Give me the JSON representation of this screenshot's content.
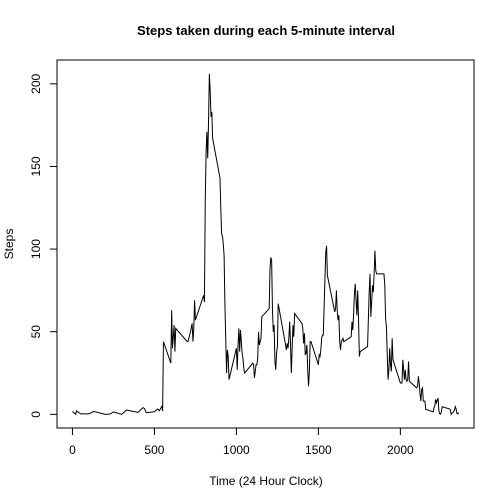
{
  "chart_data": {
    "type": "line",
    "title": "Steps taken during each 5-minute interval",
    "x_label": "Time (24 Hour Clock)",
    "y_label": "Steps",
    "color": "#000000",
    "x": [
      0,
      20,
      25,
      50,
      100,
      130,
      200,
      230,
      250,
      300,
      330,
      400,
      430,
      440,
      450,
      500,
      520,
      530,
      545,
      550,
      555,
      600,
      605,
      610,
      620,
      625,
      630,
      700,
      705,
      720,
      730,
      735,
      740,
      745,
      750,
      800,
      805,
      810,
      815,
      820,
      825,
      830,
      835,
      840,
      845,
      850,
      855,
      900,
      905,
      910,
      915,
      920,
      925,
      930,
      935,
      940,
      945,
      950,
      955,
      1000,
      1005,
      1010,
      1015,
      1020,
      1025,
      1030,
      1035,
      1040,
      1045,
      1050,
      1100,
      1105,
      1110,
      1115,
      1120,
      1125,
      1130,
      1135,
      1140,
      1145,
      1150,
      1155,
      1200,
      1205,
      1210,
      1215,
      1220,
      1225,
      1230,
      1235,
      1240,
      1245,
      1250,
      1255,
      1300,
      1305,
      1310,
      1315,
      1320,
      1325,
      1330,
      1335,
      1340,
      1345,
      1350,
      1355,
      1400,
      1405,
      1410,
      1415,
      1420,
      1425,
      1430,
      1435,
      1440,
      1445,
      1450,
      1455,
      1500,
      1505,
      1510,
      1515,
      1520,
      1525,
      1530,
      1535,
      1540,
      1545,
      1550,
      1555,
      1600,
      1605,
      1610,
      1615,
      1620,
      1625,
      1630,
      1635,
      1640,
      1645,
      1650,
      1655,
      1700,
      1705,
      1710,
      1715,
      1720,
      1725,
      1730,
      1735,
      1740,
      1745,
      1750,
      1755,
      1800,
      1805,
      1810,
      1815,
      1820,
      1825,
      1830,
      1835,
      1840,
      1845,
      1850,
      1855,
      1900,
      1905,
      1910,
      1915,
      1920,
      1925,
      1930,
      1935,
      1940,
      1945,
      1950,
      1955,
      2000,
      2005,
      2010,
      2015,
      2020,
      2025,
      2030,
      2035,
      2040,
      2045,
      2050,
      2055,
      2100,
      2105,
      2110,
      2115,
      2120,
      2125,
      2130,
      2135,
      2140,
      2145,
      2150,
      2155,
      2200,
      2205,
      2210,
      2215,
      2220,
      2225,
      2230,
      2235,
      2240,
      2245,
      2250,
      2255,
      2300,
      2305,
      2310,
      2315,
      2320,
      2325,
      2330,
      2335,
      2340,
      2345,
      2350,
      2355
    ],
    "values": [
      1.7,
      0.1,
      2.1,
      0.3,
      0.3,
      1.8,
      0,
      0.2,
      1.5,
      0,
      2.6,
      1.2,
      4.1,
      3.5,
      1,
      1.6,
      3.3,
      2.2,
      4.8,
      2,
      44,
      31,
      63,
      40,
      54,
      38,
      52,
      44,
      44,
      50,
      55,
      44,
      52,
      69,
      57,
      72,
      68,
      129,
      158,
      171,
      155,
      177,
      206,
      196,
      180,
      183,
      167,
      143,
      124,
      109,
      108,
      103,
      96,
      66,
      46,
      25,
      39,
      35,
      21,
      40,
      27,
      42,
      52,
      38,
      51,
      44,
      37,
      34,
      28,
      25,
      31,
      30,
      22,
      26,
      30,
      30,
      34,
      50,
      42,
      44,
      46,
      59,
      64,
      88,
      95,
      93,
      63,
      50,
      54,
      32,
      27,
      37,
      41,
      67,
      42,
      39,
      43,
      40,
      46,
      56,
      43,
      25,
      40,
      54,
      47,
      61,
      55,
      52,
      43,
      49,
      36,
      37,
      42,
      27,
      17,
      26,
      44,
      44,
      30,
      36,
      35,
      39,
      46,
      48,
      48,
      65,
      82,
      98,
      102,
      84,
      62,
      64,
      75,
      63,
      57,
      60,
      44,
      39,
      44,
      45,
      46,
      44,
      47,
      56,
      51,
      61,
      73,
      79,
      69,
      60,
      75,
      57,
      35,
      38,
      41,
      58,
      74,
      85,
      59,
      68,
      78,
      74,
      85,
      99,
      87,
      85,
      85,
      78,
      58,
      53,
      36,
      21,
      27,
      40,
      30,
      26,
      46,
      33,
      19,
      19,
      19,
      33,
      27,
      21,
      27,
      21,
      20,
      21,
      32,
      20,
      16,
      17,
      23,
      19,
      12,
      8,
      15,
      16,
      8,
      8,
      8,
      3,
      1.5,
      4,
      5,
      9,
      7,
      8.7,
      9.8,
      2.2,
      0.3,
      0.1,
      1.6,
      4.6,
      3.3,
      2.8,
      0,
      0.8,
      1,
      1.6,
      2.6,
      4.7,
      3.3,
      0.6,
      0.2,
      1.1
    ],
    "xlim": [
      -94.2,
      2449.2
    ],
    "ylim": [
      -8.25,
      214.4
    ],
    "xticks": [
      0,
      500,
      1000,
      1500,
      2000
    ],
    "yticks": [
      0,
      50,
      100,
      150,
      200
    ]
  }
}
